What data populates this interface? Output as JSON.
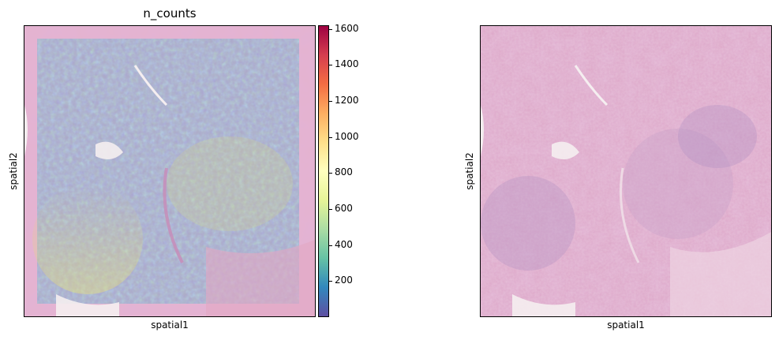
{
  "chart_data": [
    {
      "type": "heatmap",
      "title": "n_counts",
      "xlabel": "spatial1",
      "ylabel": "spatial2",
      "colorbar": {
        "colormap": "Spectral_r",
        "range": [
          0,
          1620
        ],
        "ticks": [
          200,
          400,
          600,
          800,
          1000,
          1200,
          1400,
          1600
        ],
        "tick_labels": [
          "200",
          "400",
          "600",
          "800",
          "1000",
          "1200",
          "1400",
          "1600"
        ]
      }
    },
    {
      "type": "image",
      "title": "",
      "xlabel": "spatial1",
      "ylabel": "spatial2"
    }
  ],
  "colors": {
    "tissue_pink": "#e2a9c8",
    "tissue_purple": "#b48bc0",
    "background": "#f1e7ea"
  }
}
